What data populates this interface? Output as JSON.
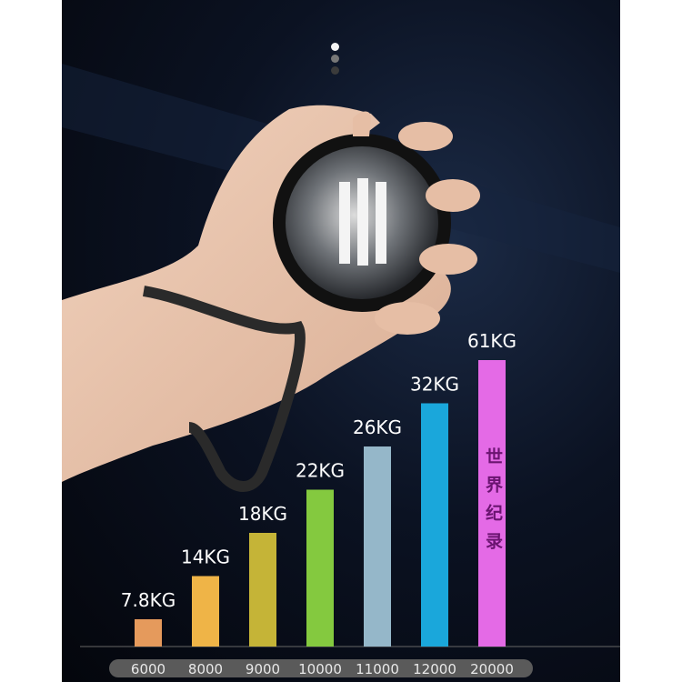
{
  "pager": {
    "count": 3,
    "active": 0
  },
  "chart_data": {
    "type": "bar",
    "categories": [
      "6000",
      "8000",
      "9000",
      "10000",
      "11000",
      "12000",
      "20000"
    ],
    "values": [
      7.8,
      14,
      18,
      22,
      26,
      32,
      61
    ],
    "data_labels": [
      "7.8KG",
      "14KG",
      "18KG",
      "22KG",
      "26KG",
      "32KG",
      "61KG"
    ],
    "colors": [
      "#e59a5c",
      "#efb447",
      "#c5b437",
      "#84c93f",
      "#95b7c9",
      "#1aa7db",
      "#e46ae6"
    ],
    "annotation": "世界纪录",
    "grid": false,
    "title": "",
    "xlabel": "",
    "ylabel": ""
  }
}
